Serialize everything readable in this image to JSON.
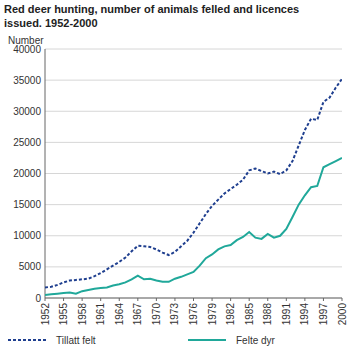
{
  "chart_data": {
    "type": "line",
    "title": "Red deer hunting, number of animals felled and licences issued. 1952-2000",
    "y_label": "Number",
    "x": [
      1952,
      1953,
      1954,
      1955,
      1956,
      1957,
      1958,
      1959,
      1960,
      1961,
      1962,
      1963,
      1964,
      1965,
      1966,
      1967,
      1968,
      1969,
      1970,
      1971,
      1972,
      1973,
      1974,
      1975,
      1976,
      1977,
      1978,
      1979,
      1980,
      1981,
      1982,
      1983,
      1984,
      1985,
      1986,
      1987,
      1988,
      1989,
      1990,
      1991,
      1992,
      1993,
      1994,
      1995,
      1996,
      1997,
      1998,
      1999,
      2000
    ],
    "series": [
      {
        "name": "Tillatt felt",
        "color": "#1f3f8f",
        "line_style": "dotted",
        "values": [
          1700,
          1800,
          2100,
          2500,
          2800,
          2900,
          3000,
          3100,
          3500,
          4000,
          4600,
          5200,
          5800,
          6500,
          7500,
          8400,
          8300,
          8200,
          7800,
          7300,
          6900,
          7400,
          8300,
          9200,
          10500,
          12000,
          13500,
          14800,
          15800,
          16800,
          17500,
          18200,
          19000,
          20500,
          20800,
          20400,
          20000,
          20300,
          19900,
          20500,
          22000,
          24500,
          27000,
          28800,
          28600,
          31500,
          32200,
          33800,
          35200
        ]
      },
      {
        "name": "Felte dyr",
        "color": "#20a89a",
        "line_style": "solid",
        "values": [
          500,
          600,
          700,
          800,
          900,
          700,
          1100,
          1300,
          1500,
          1600,
          1700,
          2000,
          2200,
          2500,
          3000,
          3600,
          3000,
          3100,
          2800,
          2600,
          2600,
          3100,
          3400,
          3800,
          4200,
          5200,
          6400,
          7000,
          7800,
          8300,
          8500,
          9300,
          9800,
          10600,
          9700,
          9500,
          10300,
          9700,
          10000,
          11100,
          13000,
          15000,
          16500,
          17800,
          18000,
          21000,
          21500,
          22000,
          22500
        ]
      }
    ],
    "xlim": [
      1952,
      2000
    ],
    "xticks": [
      1952,
      1955,
      1958,
      1961,
      1964,
      1967,
      1970,
      1973,
      1976,
      1979,
      1982,
      1985,
      1988,
      1991,
      1994,
      1997,
      2000
    ],
    "ylim": [
      0,
      40000
    ],
    "yticks": [
      0,
      5000,
      10000,
      15000,
      20000,
      25000,
      30000,
      35000,
      40000
    ],
    "grid": true,
    "legend": "bottom"
  }
}
